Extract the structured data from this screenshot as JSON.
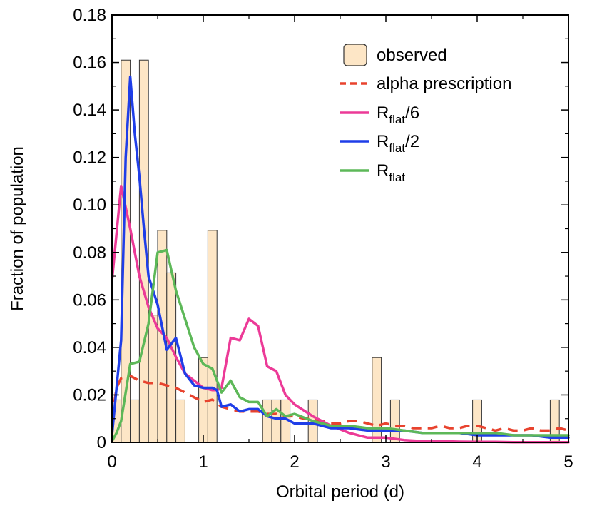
{
  "chart_data": {
    "type": "line",
    "title": "",
    "xlabel": "Orbital period (d)",
    "ylabel": "Fraction of population",
    "xlim": [
      0,
      5
    ],
    "ylim": [
      0,
      0.18
    ],
    "x_ticks": [
      0,
      1,
      2,
      3,
      4,
      5
    ],
    "x_tick_labels": [
      "0",
      "1",
      "2",
      "3",
      "4",
      "5"
    ],
    "y_ticks": [
      0,
      0.02,
      0.04,
      0.06,
      0.08,
      0.1,
      0.12,
      0.14,
      0.16,
      0.18
    ],
    "y_tick_labels": [
      "0",
      "0.02",
      "0.04",
      "0.06",
      "0.08",
      "0.10",
      "0.12",
      "0.14",
      "0.16",
      "0.18"
    ],
    "grid": false,
    "legend_placement": "top-right",
    "legend": [
      {
        "key": "observed",
        "label": "observed"
      },
      {
        "key": "alpha",
        "label": "alpha prescription"
      },
      {
        "key": "r6",
        "label_base": "R",
        "label_sub": "flat",
        "label_suffix": "/6"
      },
      {
        "key": "r2",
        "label_base": "R",
        "label_sub": "flat",
        "label_suffix": "/2"
      },
      {
        "key": "r1",
        "label_base": "R",
        "label_sub": "flat",
        "label_suffix": ""
      }
    ],
    "histogram": {
      "name": "observed",
      "bin_width": 0.1,
      "bin_starts": [
        0.0,
        0.1,
        0.2,
        0.3,
        0.4,
        0.5,
        0.6,
        0.7,
        0.95,
        1.05,
        1.65,
        1.75,
        1.85,
        2.15,
        2.85,
        3.05,
        3.95,
        4.8
      ],
      "values": [
        0.0179,
        0.161,
        0.0179,
        0.161,
        0.0536,
        0.0893,
        0.0714,
        0.0179,
        0.0357,
        0.0893,
        0.0179,
        0.0179,
        0.0179,
        0.0179,
        0.0357,
        0.0179,
        0.0179,
        0.0179
      ],
      "fill": "#fde6c6",
      "stroke": "#333333"
    },
    "series": [
      {
        "key": "alpha",
        "name": "alpha prescription",
        "color": "#e8432e",
        "dash": true,
        "x": [
          0,
          0.05,
          0.1,
          0.2,
          0.3,
          0.4,
          0.5,
          0.6,
          0.7,
          0.8,
          0.9,
          1.0,
          1.1,
          1.2,
          1.3,
          1.4,
          1.5,
          1.6,
          1.7,
          1.8,
          1.9,
          2.0,
          2.1,
          2.2,
          2.3,
          2.4,
          2.5,
          2.6,
          2.7,
          2.8,
          2.9,
          3.0,
          3.1,
          3.2,
          3.3,
          3.4,
          3.5,
          3.6,
          3.7,
          3.8,
          3.9,
          4.0,
          4.1,
          4.2,
          4.3,
          4.4,
          4.5,
          4.6,
          4.7,
          4.8,
          4.9,
          5.0
        ],
        "y": [
          0.01,
          0.023,
          0.027,
          0.028,
          0.026,
          0.025,
          0.025,
          0.024,
          0.023,
          0.021,
          0.019,
          0.017,
          0.018,
          0.015,
          0.014,
          0.013,
          0.013,
          0.013,
          0.012,
          0.012,
          0.011,
          0.011,
          0.01,
          0.01,
          0.009,
          0.008,
          0.008,
          0.009,
          0.009,
          0.008,
          0.007,
          0.008,
          0.007,
          0.007,
          0.006,
          0.006,
          0.006,
          0.007,
          0.006,
          0.006,
          0.007,
          0.007,
          0.006,
          0.005,
          0.006,
          0.005,
          0.005,
          0.006,
          0.005,
          0.005,
          0.006,
          0.005
        ]
      },
      {
        "key": "r6",
        "name": "R_flat/6",
        "color": "#ec3a97",
        "dash": false,
        "x": [
          0,
          0.1,
          0.2,
          0.3,
          0.4,
          0.5,
          0.6,
          0.7,
          0.8,
          0.9,
          1.0,
          1.1,
          1.15,
          1.2,
          1.3,
          1.4,
          1.5,
          1.6,
          1.7,
          1.8,
          1.9,
          2.0,
          2.2,
          2.4,
          2.6,
          2.8,
          3.0,
          3.2,
          3.4,
          3.6,
          3.8,
          4.0,
          4.2,
          4.4,
          4.6,
          4.8,
          5.0
        ],
        "y": [
          0.068,
          0.108,
          0.09,
          0.07,
          0.057,
          0.048,
          0.044,
          0.036,
          0.029,
          0.026,
          0.023,
          0.022,
          0.022,
          0.023,
          0.044,
          0.043,
          0.052,
          0.049,
          0.032,
          0.03,
          0.02,
          0.016,
          0.011,
          0.007,
          0.004,
          0.002,
          0.002,
          0.001,
          0.0005,
          0.0005,
          0.0003,
          0.0002,
          0.0002,
          0.0001,
          0.0001,
          0.0001,
          0.0001
        ]
      },
      {
        "key": "r2",
        "name": "R_flat/2",
        "color": "#1f3ee8",
        "dash": false,
        "x": [
          0,
          0.1,
          0.15,
          0.2,
          0.25,
          0.3,
          0.35,
          0.4,
          0.5,
          0.6,
          0.7,
          0.8,
          0.9,
          1.0,
          1.1,
          1.15,
          1.2,
          1.3,
          1.4,
          1.5,
          1.6,
          1.7,
          1.8,
          1.9,
          2.0,
          2.2,
          2.4,
          2.6,
          2.8,
          3.0,
          3.2,
          3.4,
          3.6,
          3.8,
          4.0,
          4.2,
          4.4,
          4.6,
          4.8,
          5.0
        ],
        "y": [
          0.003,
          0.043,
          0.12,
          0.154,
          0.13,
          0.112,
          0.09,
          0.07,
          0.058,
          0.039,
          0.044,
          0.029,
          0.024,
          0.023,
          0.023,
          0.022,
          0.015,
          0.016,
          0.013,
          0.014,
          0.014,
          0.011,
          0.01,
          0.01,
          0.008,
          0.008,
          0.006,
          0.006,
          0.005,
          0.005,
          0.005,
          0.004,
          0.004,
          0.004,
          0.003,
          0.003,
          0.003,
          0.003,
          0.002,
          0.002
        ]
      },
      {
        "key": "r1",
        "name": "R_flat",
        "color": "#5db858",
        "dash": false,
        "x": [
          0,
          0.05,
          0.1,
          0.2,
          0.3,
          0.4,
          0.5,
          0.6,
          0.7,
          0.8,
          0.9,
          1.0,
          1.1,
          1.2,
          1.3,
          1.4,
          1.5,
          1.6,
          1.7,
          1.8,
          1.9,
          2.0,
          2.2,
          2.4,
          2.6,
          2.8,
          3.0,
          3.2,
          3.4,
          3.6,
          3.8,
          4.0,
          4.2,
          4.4,
          4.6,
          4.8,
          5.0
        ],
        "y": [
          0.0005,
          0.004,
          0.009,
          0.033,
          0.034,
          0.05,
          0.08,
          0.081,
          0.064,
          0.052,
          0.04,
          0.033,
          0.031,
          0.021,
          0.026,
          0.019,
          0.017,
          0.017,
          0.011,
          0.014,
          0.011,
          0.012,
          0.009,
          0.007,
          0.007,
          0.006,
          0.006,
          0.005,
          0.004,
          0.004,
          0.004,
          0.004,
          0.004,
          0.003,
          0.003,
          0.003,
          0.003
        ]
      }
    ]
  }
}
